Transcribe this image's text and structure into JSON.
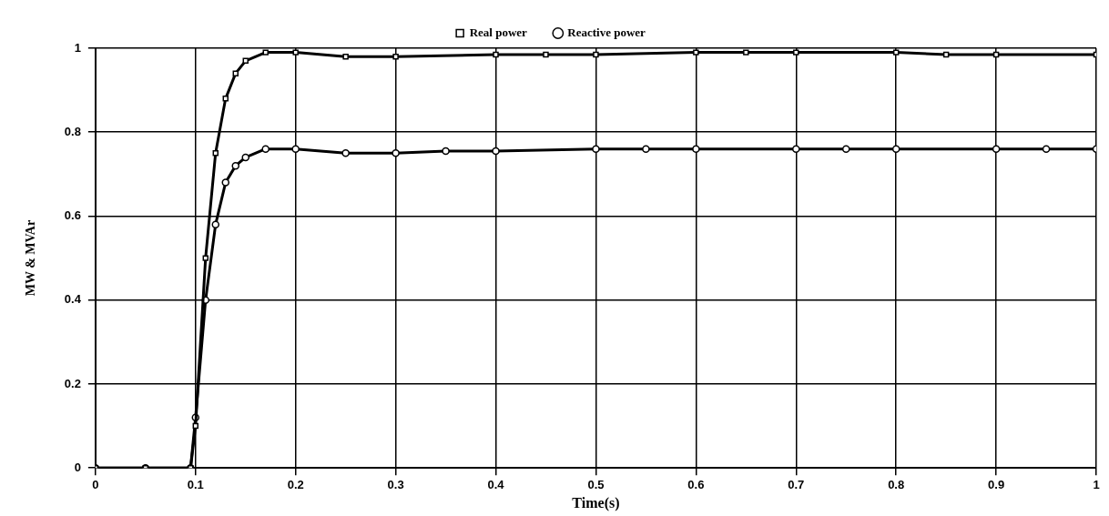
{
  "chart_data": {
    "type": "line",
    "xlabel": "Time(s)",
    "ylabel": "MW & MVAr",
    "xlim": [
      0,
      1
    ],
    "xticks": [
      0,
      0.1,
      0.2,
      0.3,
      0.4,
      0.5,
      0.6,
      0.7,
      0.8,
      0.9,
      1
    ],
    "ylim": [
      0,
      1
    ],
    "yticks": [
      0,
      0.2,
      0.4,
      0.6,
      0.8,
      1
    ],
    "grid": true,
    "legend": "top",
    "line_style": "solid",
    "series": [
      {
        "name": "Real power",
        "color": "#000000",
        "marker": "square",
        "x": [
          0,
          0.05,
          0.095,
          0.1,
          0.11,
          0.12,
          0.13,
          0.14,
          0.15,
          0.17,
          0.2,
          0.25,
          0.3,
          0.4,
          0.45,
          0.5,
          0.6,
          0.65,
          0.7,
          0.8,
          0.85,
          0.9,
          1
        ],
        "values": [
          0,
          0,
          0,
          0.1,
          0.5,
          0.75,
          0.88,
          0.94,
          0.97,
          0.99,
          0.99,
          0.98,
          0.98,
          0.985,
          0.985,
          0.985,
          0.99,
          0.99,
          0.99,
          0.99,
          0.985,
          0.985,
          0.985
        ]
      },
      {
        "name": "Reactive power",
        "color": "#000000",
        "marker": "circle",
        "x": [
          0,
          0.05,
          0.095,
          0.1,
          0.11,
          0.12,
          0.13,
          0.14,
          0.15,
          0.17,
          0.2,
          0.25,
          0.3,
          0.35,
          0.4,
          0.5,
          0.55,
          0.6,
          0.7,
          0.75,
          0.8,
          0.9,
          0.95,
          1
        ],
        "values": [
          0,
          0,
          0,
          0.12,
          0.4,
          0.58,
          0.68,
          0.72,
          0.74,
          0.76,
          0.76,
          0.75,
          0.75,
          0.755,
          0.755,
          0.76,
          0.76,
          0.76,
          0.76,
          0.76,
          0.76,
          0.76,
          0.76,
          0.76
        ]
      }
    ]
  }
}
